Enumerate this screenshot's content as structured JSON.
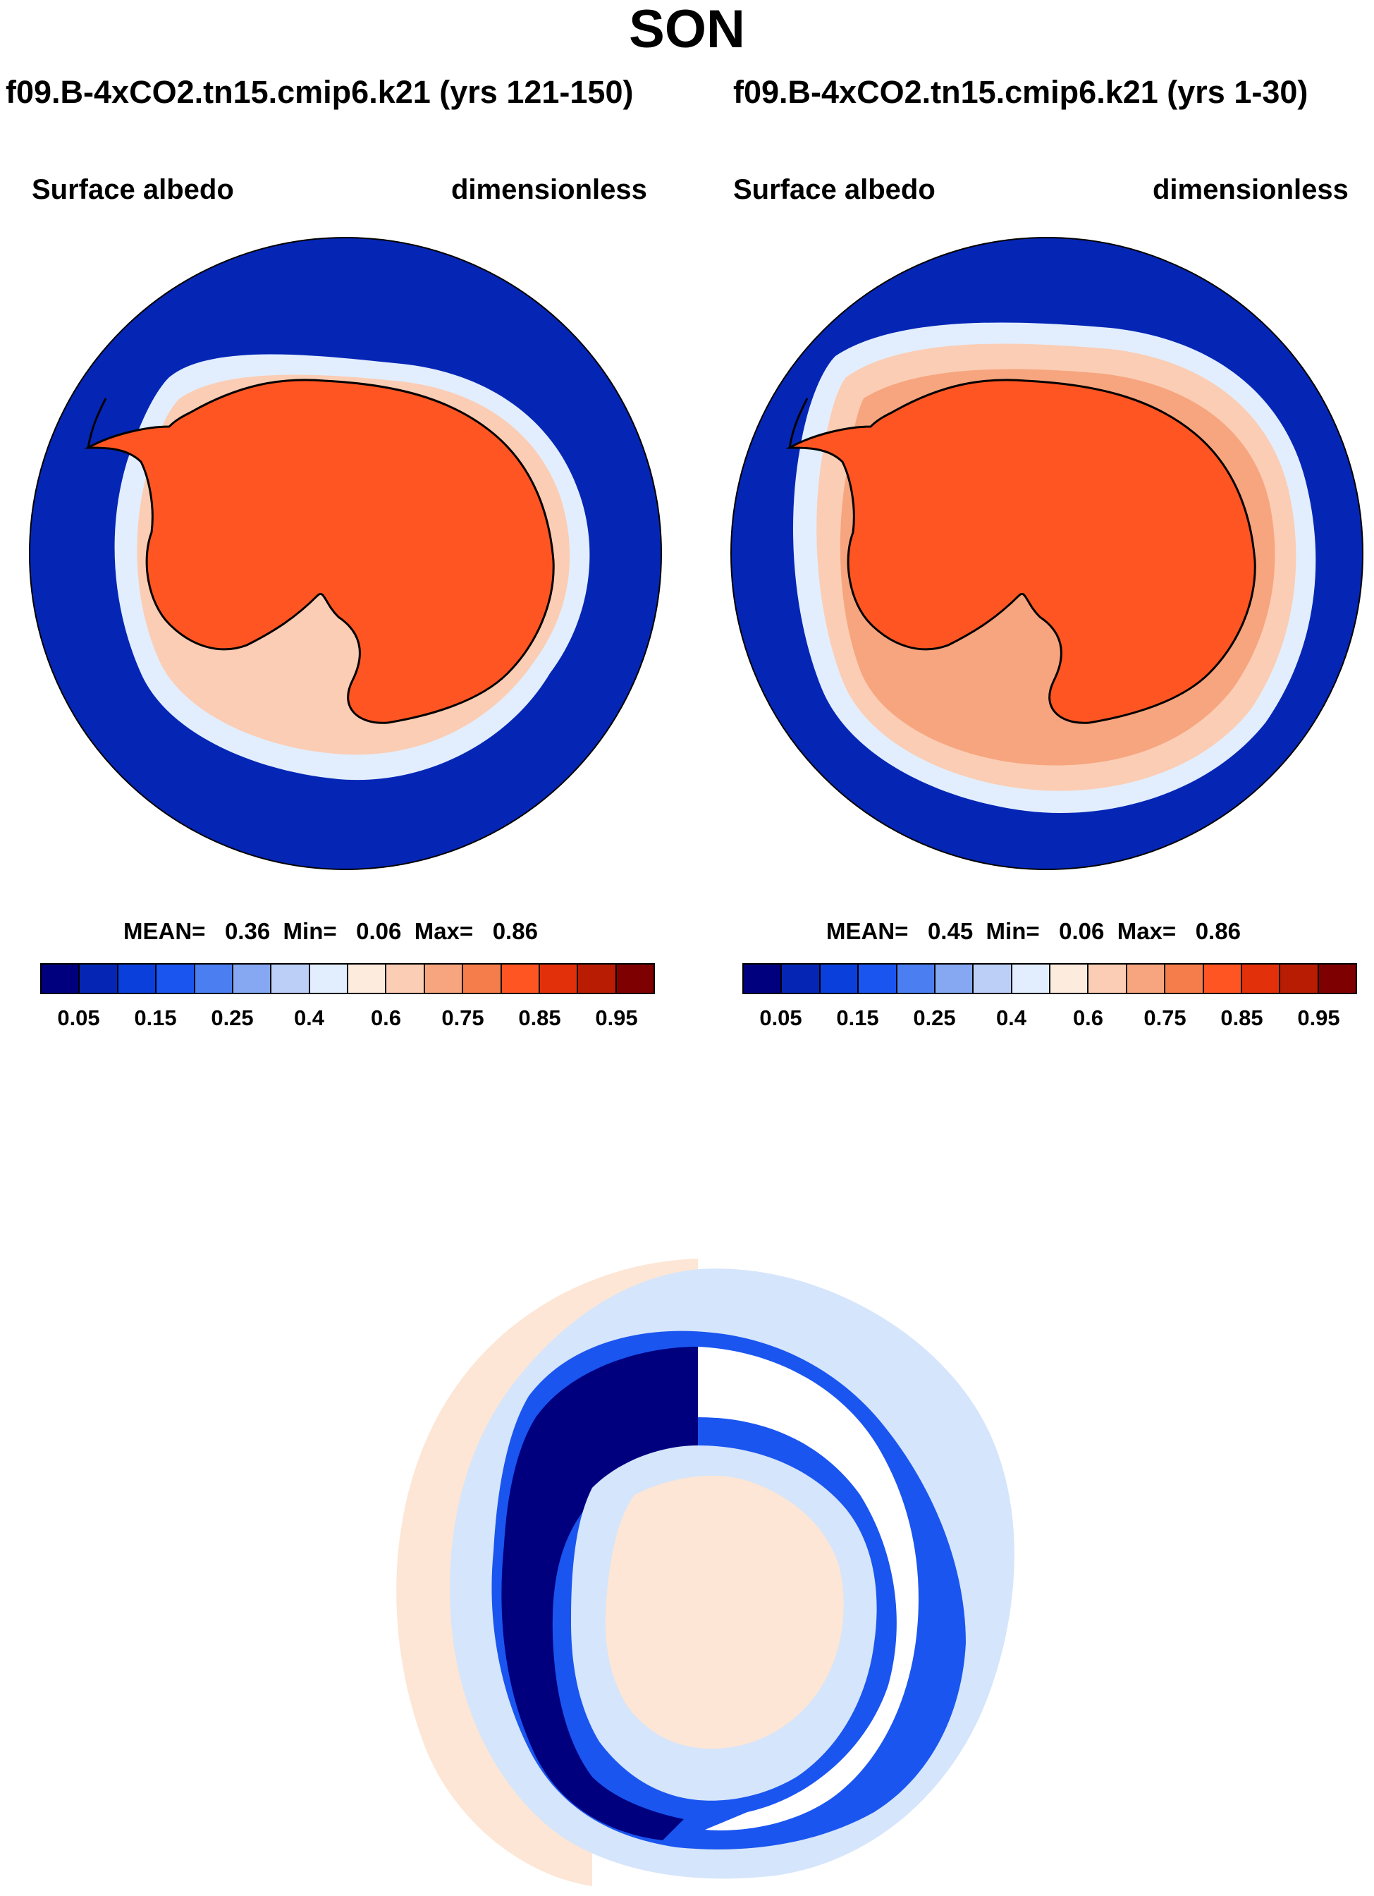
{
  "page": {
    "title": "SON"
  },
  "panels": [
    {
      "run_label": "f09.B-4xCO2.tn15.cmip6.k21 (yrs 121-150)",
      "variable": "Surface albedo",
      "units": "dimensionless",
      "stats": {
        "mean_label": "MEAN=",
        "mean": "0.36",
        "min_label": "Min=",
        "min": "0.06",
        "max_label": "Max=",
        "max": "0.86"
      }
    },
    {
      "run_label": "f09.B-4xCO2.tn15.cmip6.k21 (yrs 1-30)",
      "variable": "Surface albedo",
      "units": "dimensionless",
      "stats": {
        "mean_label": "MEAN=",
        "mean": "0.45",
        "min_label": "Min=",
        "min": "0.06",
        "max_label": "Max=",
        "max": "0.86"
      }
    }
  ],
  "colorbar": {
    "colors": [
      "#00007f",
      "#0526b5",
      "#0a3fdc",
      "#1a55f0",
      "#4b7ef0",
      "#86a8f2",
      "#bcd0f7",
      "#e2eefd",
      "#fdebde",
      "#fbcdb4",
      "#f6a57f",
      "#f57d4b",
      "#ff5522",
      "#e2310a",
      "#b81d04",
      "#7f0000"
    ],
    "tick_labels": [
      "0.05",
      "0.15",
      "0.25",
      "0.4",
      "0.6",
      "0.75",
      "0.85",
      "0.95"
    ]
  },
  "colors": {
    "ocean": "#0526b5",
    "ice_sheet": "#ff5522",
    "diff_strong_negative": "#00007f",
    "diff_light": "#d5e5fb",
    "diff_peach": "#fde6d5"
  }
}
